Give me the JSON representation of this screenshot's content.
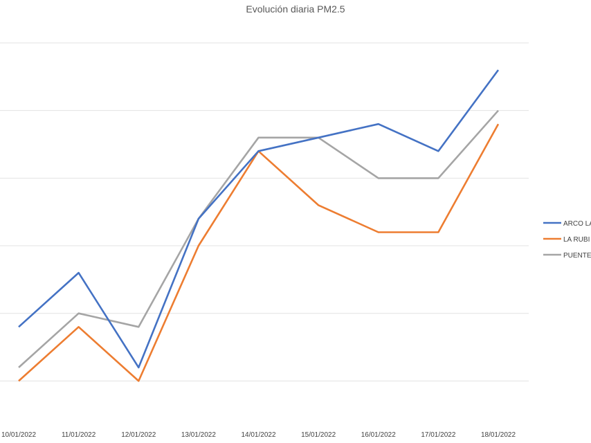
{
  "chart_data": {
    "type": "line",
    "title": "Evolución diaria PM2.5",
    "categories": [
      "10/01/2022",
      "11/01/2022",
      "12/01/2022",
      "13/01/2022",
      "14/01/2022",
      "15/01/2022",
      "16/01/2022",
      "17/01/2022",
      "18/01/2022"
    ],
    "series": [
      {
        "name": "ARCO LA",
        "color": "#4472c4",
        "values": [
          19,
          23,
          16,
          27,
          32,
          33,
          34,
          32,
          38
        ]
      },
      {
        "name": "LA RUBI",
        "color": "#ed7d31",
        "values": [
          15,
          19,
          15,
          25,
          32,
          28,
          26,
          26,
          34
        ]
      },
      {
        "name": "PUENTE",
        "color": "#a5a5a5",
        "values": [
          16,
          20,
          19,
          27,
          33,
          33,
          30,
          30,
          35
        ]
      }
    ],
    "ylim": [
      12,
      40
    ],
    "gridlines": [
      15,
      20,
      25,
      30,
      35,
      40
    ],
    "grid": true,
    "y_tick_labels_visible": false,
    "legend_position": "right",
    "xlabel": "",
    "ylabel": ""
  }
}
